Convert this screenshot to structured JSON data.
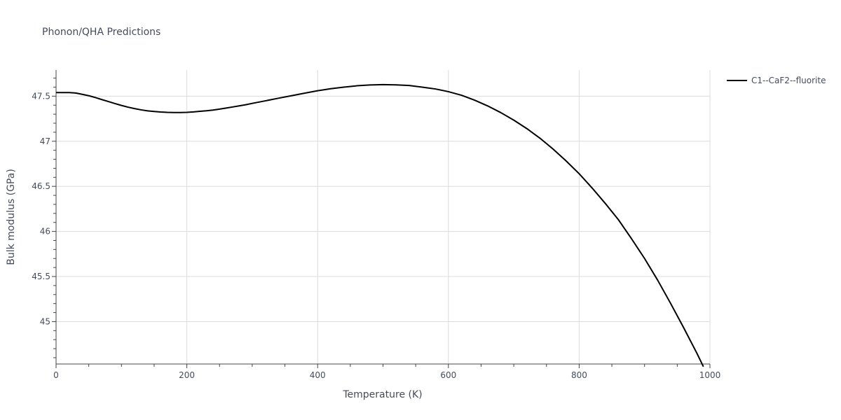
{
  "chart_data": {
    "type": "line",
    "title": "Phonon/QHA Predictions",
    "xlabel": "Temperature (K)",
    "ylabel": "Bulk modulus (GPa)",
    "xlim": [
      0,
      1000
    ],
    "ylim": [
      44.53,
      47.79
    ],
    "x_ticks": [
      0,
      200,
      400,
      600,
      800,
      1000
    ],
    "x_tick_labels": [
      "0",
      "200",
      "400",
      "600",
      "800",
      "1000"
    ],
    "y_ticks": [
      45,
      45.5,
      46,
      46.5,
      47,
      47.5
    ],
    "y_tick_labels": [
      "45",
      "45.5",
      "46",
      "46.5",
      "47",
      "47.5"
    ],
    "grid": true,
    "legend_position": "top-right",
    "series": [
      {
        "name": "C1--CaF2--fluorite",
        "color": "#000000",
        "x": [
          0,
          10,
          20,
          30,
          40,
          50,
          60,
          70,
          80,
          90,
          100,
          110,
          120,
          130,
          140,
          150,
          160,
          170,
          180,
          190,
          200,
          210,
          220,
          230,
          240,
          250,
          260,
          270,
          280,
          290,
          300,
          320,
          340,
          360,
          380,
          400,
          420,
          440,
          460,
          480,
          500,
          520,
          540,
          560,
          580,
          600,
          620,
          640,
          660,
          680,
          700,
          720,
          740,
          760,
          780,
          800,
          820,
          840,
          860,
          880,
          900,
          920,
          940,
          960,
          980,
          990
        ],
        "y": [
          47.54,
          47.54,
          47.54,
          47.535,
          47.52,
          47.505,
          47.485,
          47.462,
          47.44,
          47.418,
          47.397,
          47.378,
          47.362,
          47.348,
          47.337,
          47.33,
          47.324,
          47.32,
          47.318,
          47.318,
          47.32,
          47.325,
          47.332,
          47.338,
          47.346,
          47.356,
          47.368,
          47.38,
          47.392,
          47.405,
          47.42,
          47.448,
          47.477,
          47.505,
          47.533,
          47.56,
          47.582,
          47.6,
          47.615,
          47.624,
          47.628,
          47.625,
          47.618,
          47.6,
          47.58,
          47.55,
          47.51,
          47.456,
          47.392,
          47.318,
          47.234,
          47.14,
          47.034,
          46.914,
          46.782,
          46.64,
          46.48,
          46.31,
          46.13,
          45.92,
          45.7,
          45.46,
          45.2,
          44.93,
          44.65,
          44.5
        ]
      }
    ]
  }
}
